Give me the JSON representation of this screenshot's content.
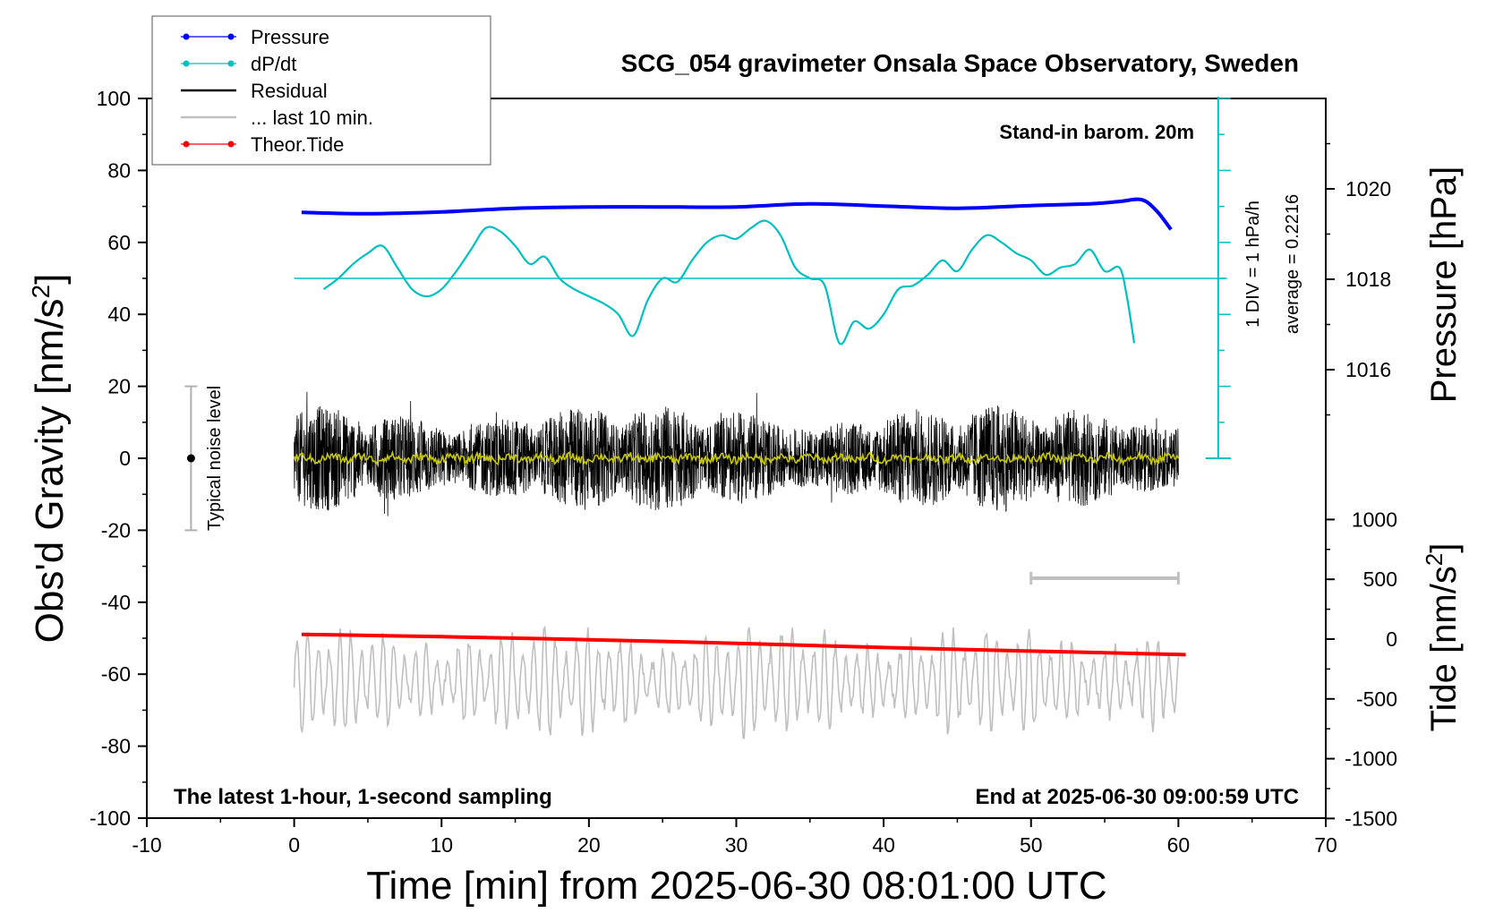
{
  "chart_data": {
    "type": "line",
    "title": "SCG_054 gravimeter Onsala Space Observatory, Sweden",
    "xlabel": "Time [min] from 2025-06-30 08:01:00 UTC",
    "ylabel_left": "Obs'd Gravity [nm/s",
    "ylabel_left_sup": "2",
    "ylabel_left_end": "]",
    "ylabel_pressure": "Pressure [hPa]",
    "ylabel_tide": "Tide [nm/s",
    "ylabel_tide_sup": "2",
    "ylabel_tide_end": "]",
    "xlim": [
      -10,
      70
    ],
    "ylim_gravity": [
      -100,
      100
    ],
    "pressure_ticks": [
      1016,
      1018,
      1020
    ],
    "tide_ticks": [
      -1500,
      -1000,
      -500,
      0,
      500,
      1000
    ],
    "x_ticks": [
      -10,
      0,
      10,
      20,
      30,
      40,
      50,
      60,
      70
    ],
    "y_ticks": [
      -100,
      -80,
      -60,
      -40,
      -20,
      0,
      20,
      40,
      60,
      80,
      100
    ],
    "grid": false,
    "legend_position": "top-left",
    "annotations": {
      "barometer": "Stand-in barom. 20m",
      "sampling": "The latest 1-hour, 1-second sampling",
      "end_time": "End at 2025-06-30 09:00:59 UTC",
      "div_label": "1 DIV = 1 hPa/h",
      "average_label": "average = 0.2216",
      "noise_label": "Typical noise level"
    },
    "series": [
      {
        "name": "Pressure",
        "color": "#0000ff",
        "axis": "pressure",
        "x": [
          0.5,
          5,
          10,
          15,
          20,
          25,
          30,
          35,
          40,
          45,
          50,
          54,
          56,
          57.5,
          58.5,
          59.5
        ],
        "values": [
          1019.48,
          1019.45,
          1019.49,
          1019.57,
          1019.6,
          1019.6,
          1019.6,
          1019.67,
          1019.62,
          1019.57,
          1019.63,
          1019.67,
          1019.72,
          1019.76,
          1019.52,
          1019.1
        ]
      },
      {
        "name": "dP/dt",
        "color": "#00c0c0",
        "axis": "gravity",
        "x": [
          2,
          3,
          4,
          5,
          6,
          7,
          8,
          9,
          10,
          11,
          12,
          13,
          14,
          15,
          16,
          17,
          18,
          19,
          20,
          21,
          22,
          23,
          24,
          25,
          26,
          27,
          28,
          29,
          30,
          31,
          32,
          33,
          34,
          35,
          36,
          37,
          38,
          39,
          40,
          41,
          42,
          43,
          44,
          45,
          46,
          47,
          48,
          49,
          50,
          51,
          52,
          53,
          54,
          55,
          56,
          56.5,
          57
        ],
        "values": [
          47,
          50,
          54,
          57,
          59,
          53,
          47,
          45,
          47,
          52,
          58,
          64,
          63,
          59,
          54,
          56,
          50,
          47,
          45,
          43,
          40,
          34,
          44,
          50,
          49,
          55,
          60,
          62,
          61,
          64,
          66,
          62,
          53,
          50,
          48,
          32,
          38,
          36,
          40,
          47,
          48,
          51,
          55,
          52,
          58,
          62,
          60,
          57,
          55,
          51,
          53,
          54,
          58,
          52,
          53,
          45,
          32
        ]
      },
      {
        "name": "Residual",
        "color": "#000000",
        "axis": "gravity",
        "values_range": [
          -22,
          26
        ]
      },
      {
        "name": "... last 10 min.",
        "color": "#c0c0c0",
        "axis": "gravity",
        "values_range": [
          -79,
          -47
        ]
      },
      {
        "name": "Theor.Tide",
        "color": "#ff0000",
        "axis": "tide",
        "x": [
          0.5,
          10,
          20,
          30,
          40,
          50,
          60.5
        ],
        "values": [
          40,
          20,
          -5,
          -35,
          -70,
          -100,
          -130
        ]
      }
    ],
    "noise_bar": {
      "x": -7,
      "low": -20,
      "high": 20
    },
    "span_bar": {
      "x_start": 50,
      "x_end": 60
    }
  },
  "colors": {
    "pressure": "#0000ff",
    "dpdt": "#00c0c0",
    "residual": "#000000",
    "last10": "#c0c0c0",
    "tide": "#ff0000",
    "smooth": "#c8c800"
  }
}
